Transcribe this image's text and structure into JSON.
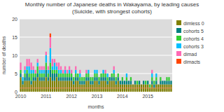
{
  "chart_data": {
    "type": "bar",
    "stacked": true,
    "title": "Monthly number of Japanese deaths in Wakayama, by leading causes",
    "subtitle": "(Suicide, with strongest cohorts)",
    "x_label": "months",
    "y_label": "number of deaths",
    "background": "#dcdcdc",
    "categories": [
      "2010",
      null,
      null,
      null,
      null,
      null,
      null,
      null,
      null,
      null,
      null,
      null,
      "2011",
      null,
      null,
      null,
      null,
      null,
      null,
      null,
      null,
      null,
      null,
      null,
      "2012",
      null,
      null,
      null,
      null,
      null,
      null,
      null,
      null,
      null,
      null,
      null,
      "2013",
      null,
      null,
      null,
      null,
      null,
      null,
      null,
      null,
      null,
      null,
      null,
      "2014",
      null,
      null,
      null,
      null,
      null,
      null,
      null,
      null,
      null,
      null,
      null,
      "2015",
      null,
      null,
      null,
      null,
      null,
      null,
      null,
      null,
      null,
      null,
      null
    ],
    "series": [
      {
        "name": "dimless 0",
        "color": "#808000",
        "values": [
          4,
          2,
          3,
          3,
          3,
          2,
          3,
          3,
          4,
          3,
          3,
          3,
          4,
          3,
          4,
          3,
          3,
          4,
          3,
          3,
          3,
          3,
          3,
          3,
          3,
          2,
          3,
          3,
          2,
          2,
          2,
          3,
          3,
          2,
          2,
          3,
          3,
          2,
          3,
          3,
          3,
          2,
          3,
          3,
          3,
          2,
          3,
          2,
          2,
          2,
          2,
          2,
          2,
          2,
          2,
          2,
          2,
          2,
          2,
          2,
          2,
          1,
          2,
          1,
          2,
          2,
          2,
          2,
          2,
          2,
          2,
          2
        ]
      },
      {
        "name": "cohorts 5",
        "color": "#008080",
        "values": [
          1,
          1,
          1,
          2,
          1,
          1,
          1,
          1,
          1,
          1,
          1,
          1,
          2,
          1,
          2,
          2,
          2,
          1,
          1,
          1,
          1,
          1,
          1,
          1,
          1,
          1,
          1,
          1,
          1,
          1,
          1,
          1,
          1,
          1,
          1,
          1,
          1,
          1,
          1,
          1,
          1,
          1,
          1,
          1,
          1,
          1,
          1,
          1,
          1,
          1,
          1,
          1,
          1,
          0,
          1,
          0,
          1,
          0,
          1,
          0,
          1,
          0,
          1,
          1,
          1,
          0,
          1,
          1,
          1,
          1,
          1,
          1
        ]
      },
      {
        "name": "cohorts 4",
        "color": "#32cd32",
        "values": [
          1,
          0,
          1,
          1,
          1,
          2,
          1,
          1,
          2,
          1,
          1,
          1,
          2,
          1,
          2,
          1,
          1,
          1,
          1,
          1,
          1,
          1,
          1,
          1,
          1,
          1,
          1,
          1,
          1,
          1,
          1,
          1,
          1,
          1,
          1,
          1,
          1,
          1,
          1,
          1,
          1,
          1,
          0,
          1,
          1,
          1,
          1,
          0,
          1,
          0,
          1,
          0,
          1,
          0,
          0,
          1,
          0,
          0,
          0,
          1,
          0,
          1,
          1,
          1,
          1,
          0,
          1,
          0,
          0,
          1,
          1,
          0
        ]
      },
      {
        "name": "cohorts 3",
        "color": "#00bfff",
        "values": [
          0,
          1,
          1,
          1,
          2,
          1,
          1,
          0,
          1,
          1,
          1,
          1,
          2,
          1,
          4,
          1,
          2,
          1,
          1,
          1,
          0,
          1,
          0,
          1,
          0,
          0,
          1,
          0,
          1,
          0,
          0,
          0,
          1,
          0,
          0,
          1,
          1,
          0,
          0,
          1,
          0,
          1,
          0,
          0,
          1,
          0,
          0,
          0,
          0,
          0,
          1,
          0,
          0,
          0,
          0,
          0,
          0,
          0,
          0,
          0,
          0,
          0,
          1,
          0,
          1,
          0,
          0,
          0,
          0,
          0,
          0,
          0
        ]
      },
      {
        "name": "dimad",
        "color": "#ff69b4",
        "values": [
          2,
          0,
          1,
          2,
          2,
          2,
          1,
          1,
          1,
          1,
          1,
          1,
          1,
          1,
          3,
          2,
          1,
          1,
          2,
          1,
          1,
          1,
          1,
          1,
          1,
          0,
          1,
          0,
          1,
          0,
          0,
          1,
          0,
          0,
          0,
          0,
          0,
          0,
          0,
          0,
          1,
          0,
          0,
          0,
          1,
          0,
          0,
          0,
          0,
          0,
          0,
          0,
          0,
          0,
          0,
          0,
          0,
          0,
          0,
          0,
          0,
          0,
          1,
          0,
          0,
          0,
          0,
          0,
          0,
          0,
          0,
          0
        ]
      },
      {
        "name": "dimacts",
        "color": "#ff4500",
        "values": [
          0,
          0,
          0,
          0,
          0,
          0,
          0,
          0,
          0,
          0,
          0,
          0,
          0,
          0,
          1,
          0,
          0,
          0,
          0,
          0,
          0,
          0,
          0,
          0,
          0,
          0,
          0,
          0,
          0,
          0,
          0,
          0,
          0,
          0,
          0,
          0,
          0,
          0,
          0,
          0,
          0,
          0,
          0,
          0,
          0,
          0,
          0,
          0,
          0,
          0,
          0,
          0,
          0,
          0,
          0,
          0,
          0,
          0,
          0,
          0,
          0,
          0,
          0,
          0,
          0,
          0,
          0,
          0,
          0,
          0,
          0,
          0
        ]
      }
    ],
    "reference_lines": [
      {
        "y": 1,
        "color": "#ff8c69"
      }
    ],
    "ylim": [
      0,
      20
    ],
    "yticks": [
      0,
      5,
      10,
      15,
      20
    ],
    "grid": true,
    "legend": "upper right"
  }
}
